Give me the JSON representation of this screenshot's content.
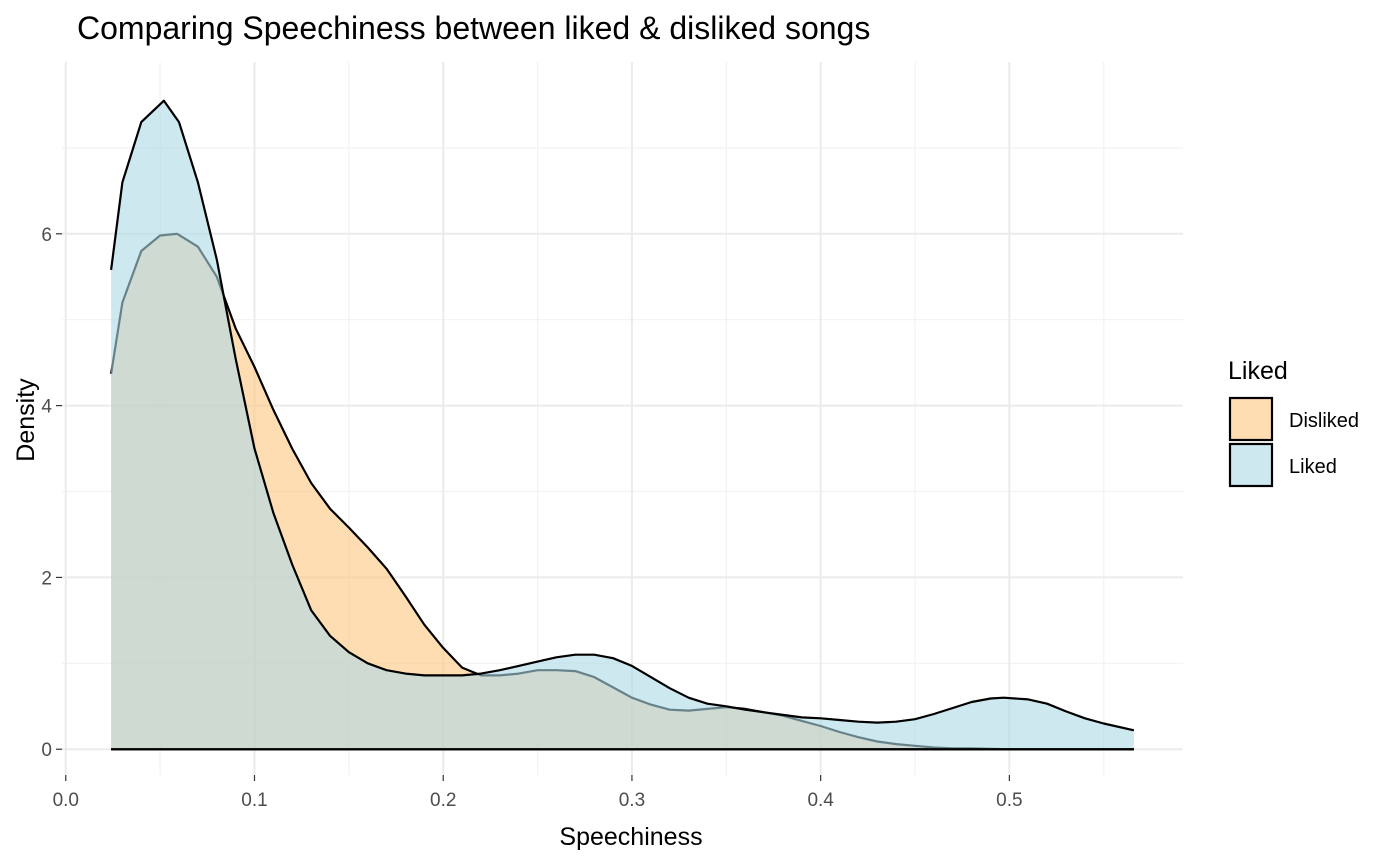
{
  "chart_data": {
    "type": "area",
    "title": "Comparing Speechiness between liked & disliked songs",
    "xlabel": "Speechiness",
    "ylabel": "Density",
    "xlim": [
      -0.002,
      0.592
    ],
    "ylim": [
      -0.3,
      8.0
    ],
    "x_ticks": [
      0.0,
      0.1,
      0.2,
      0.3,
      0.4,
      0.5
    ],
    "x_tick_labels": [
      "0.0",
      "0.1",
      "0.2",
      "0.3",
      "0.4",
      "0.5"
    ],
    "y_ticks": [
      0,
      2,
      4,
      6
    ],
    "y_tick_labels": [
      "0",
      "2",
      "4",
      "6"
    ],
    "grid": true,
    "legend": {
      "title": "Liked",
      "position": "right"
    },
    "series": [
      {
        "name": "Disliked",
        "color": "#FFC680",
        "x": [
          0.024,
          0.03,
          0.04,
          0.05,
          0.059,
          0.07,
          0.08,
          0.09,
          0.1,
          0.11,
          0.12,
          0.13,
          0.14,
          0.15,
          0.16,
          0.17,
          0.18,
          0.19,
          0.2,
          0.21,
          0.22,
          0.23,
          0.24,
          0.25,
          0.26,
          0.27,
          0.28,
          0.29,
          0.3,
          0.31,
          0.32,
          0.33,
          0.34,
          0.35,
          0.36,
          0.37,
          0.38,
          0.39,
          0.4,
          0.41,
          0.42,
          0.43,
          0.44,
          0.45,
          0.46,
          0.47,
          0.48,
          0.49,
          0.5,
          0.52,
          0.54,
          0.566
        ],
        "y": [
          4.37,
          5.2,
          5.8,
          5.98,
          6.0,
          5.85,
          5.5,
          4.9,
          4.45,
          3.95,
          3.5,
          3.1,
          2.8,
          2.58,
          2.35,
          2.1,
          1.78,
          1.45,
          1.18,
          0.95,
          0.86,
          0.86,
          0.88,
          0.92,
          0.92,
          0.91,
          0.84,
          0.72,
          0.6,
          0.52,
          0.46,
          0.45,
          0.47,
          0.49,
          0.47,
          0.43,
          0.39,
          0.33,
          0.27,
          0.2,
          0.14,
          0.09,
          0.06,
          0.04,
          0.02,
          0.01,
          0.01,
          0.005,
          0.0,
          0.0,
          0.0,
          0.0
        ]
      },
      {
        "name": "Liked",
        "color": "#ADD8E6",
        "x": [
          0.024,
          0.03,
          0.04,
          0.052,
          0.06,
          0.07,
          0.08,
          0.09,
          0.1,
          0.11,
          0.12,
          0.13,
          0.14,
          0.15,
          0.16,
          0.17,
          0.18,
          0.19,
          0.2,
          0.21,
          0.22,
          0.23,
          0.24,
          0.25,
          0.26,
          0.27,
          0.28,
          0.29,
          0.3,
          0.31,
          0.32,
          0.33,
          0.34,
          0.35,
          0.36,
          0.37,
          0.38,
          0.39,
          0.4,
          0.41,
          0.42,
          0.43,
          0.44,
          0.45,
          0.46,
          0.47,
          0.48,
          0.49,
          0.497,
          0.51,
          0.52,
          0.53,
          0.54,
          0.55,
          0.566
        ],
        "y": [
          5.58,
          6.6,
          7.3,
          7.55,
          7.3,
          6.6,
          5.7,
          4.55,
          3.5,
          2.75,
          2.15,
          1.62,
          1.32,
          1.13,
          1.0,
          0.92,
          0.88,
          0.86,
          0.86,
          0.86,
          0.88,
          0.92,
          0.97,
          1.02,
          1.07,
          1.1,
          1.1,
          1.06,
          0.97,
          0.84,
          0.71,
          0.6,
          0.53,
          0.5,
          0.46,
          0.43,
          0.4,
          0.37,
          0.36,
          0.34,
          0.32,
          0.31,
          0.32,
          0.35,
          0.41,
          0.48,
          0.55,
          0.59,
          0.6,
          0.58,
          0.53,
          0.44,
          0.36,
          0.3,
          0.22
        ]
      }
    ]
  }
}
